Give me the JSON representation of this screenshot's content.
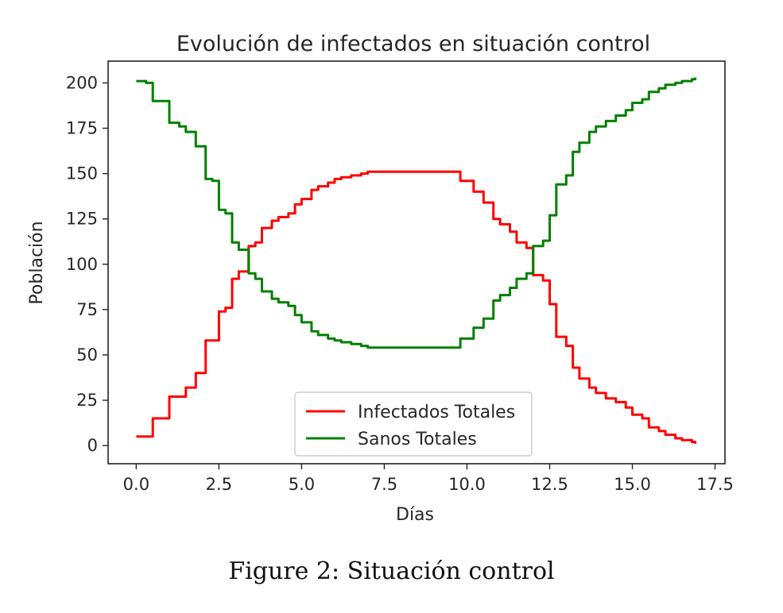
{
  "figure": {
    "caption": "Figure 2: Situación control"
  },
  "chart_data": {
    "type": "line",
    "title": "Evolución de infectados en situación control",
    "xlabel": "Días",
    "ylabel": "Población",
    "xlim": [
      -0.85,
      17.8
    ],
    "ylim": [
      -10,
      212
    ],
    "xticks": [
      0.0,
      2.5,
      5.0,
      7.5,
      10.0,
      12.5,
      15.0,
      17.5
    ],
    "xtick_labels": [
      "0.0",
      "2.5",
      "5.0",
      "7.5",
      "10.0",
      "12.5",
      "15.0",
      "17.5"
    ],
    "yticks": [
      0,
      25,
      50,
      75,
      100,
      125,
      150,
      175,
      200
    ],
    "ytick_labels": [
      "0",
      "25",
      "50",
      "75",
      "100",
      "125",
      "150",
      "175",
      "200"
    ],
    "grid": false,
    "legend_position": "lower-center",
    "step": "post",
    "series": [
      {
        "name": "Infectados Totales",
        "color": "#ff0000",
        "x": [
          0.0,
          0.3,
          0.5,
          0.8,
          1.0,
          1.3,
          1.5,
          1.8,
          2.1,
          2.3,
          2.5,
          2.7,
          2.9,
          3.1,
          3.4,
          3.6,
          3.8,
          4.1,
          4.3,
          4.6,
          4.8,
          5.0,
          5.3,
          5.5,
          5.8,
          6.0,
          6.2,
          6.5,
          6.8,
          7.0,
          9.8,
          10.2,
          10.5,
          10.8,
          11.0,
          11.3,
          11.5,
          11.8,
          12.0,
          12.3,
          12.5,
          12.7,
          13.0,
          13.2,
          13.4,
          13.7,
          13.9,
          14.2,
          14.5,
          14.8,
          15.0,
          15.3,
          15.5,
          15.8,
          16.0,
          16.3,
          16.5,
          16.8,
          16.9
        ],
        "values": [
          5,
          5,
          15,
          15,
          27,
          27,
          32,
          40,
          58,
          58,
          74,
          76,
          92,
          96,
          110,
          112,
          120,
          124,
          126,
          128,
          133,
          136,
          141,
          143,
          145,
          147,
          148,
          149,
          150,
          151,
          146,
          140,
          134,
          125,
          122,
          118,
          112,
          109,
          94,
          91,
          78,
          60,
          55,
          43,
          37,
          32,
          29,
          26,
          24,
          21,
          17,
          15,
          10,
          8,
          6,
          4,
          3,
          2,
          1
        ]
      },
      {
        "name": "Sanos Totales",
        "color": "#008000",
        "x": [
          0.0,
          0.3,
          0.5,
          0.8,
          1.0,
          1.3,
          1.5,
          1.8,
          2.1,
          2.3,
          2.5,
          2.7,
          2.9,
          3.1,
          3.4,
          3.6,
          3.8,
          4.1,
          4.3,
          4.6,
          4.8,
          5.0,
          5.3,
          5.5,
          5.8,
          6.0,
          6.2,
          6.5,
          6.8,
          7.0,
          9.8,
          10.2,
          10.5,
          10.8,
          11.0,
          11.3,
          11.5,
          11.8,
          12.0,
          12.3,
          12.5,
          12.7,
          13.0,
          13.2,
          13.4,
          13.7,
          13.9,
          14.2,
          14.5,
          14.8,
          15.0,
          15.3,
          15.5,
          15.8,
          16.0,
          16.3,
          16.5,
          16.8,
          16.9
        ],
        "values": [
          201,
          200,
          190,
          190,
          178,
          176,
          173,
          165,
          147,
          146,
          130,
          128,
          112,
          108,
          95,
          92,
          85,
          81,
          79,
          77,
          72,
          68,
          63,
          61,
          59,
          58,
          57,
          56,
          55,
          54,
          59,
          65,
          70,
          80,
          83,
          87,
          92,
          95,
          110,
          113,
          127,
          144,
          149,
          162,
          167,
          173,
          176,
          179,
          182,
          185,
          189,
          191,
          195,
          197,
          199,
          200,
          201,
          202,
          203
        ]
      }
    ]
  }
}
